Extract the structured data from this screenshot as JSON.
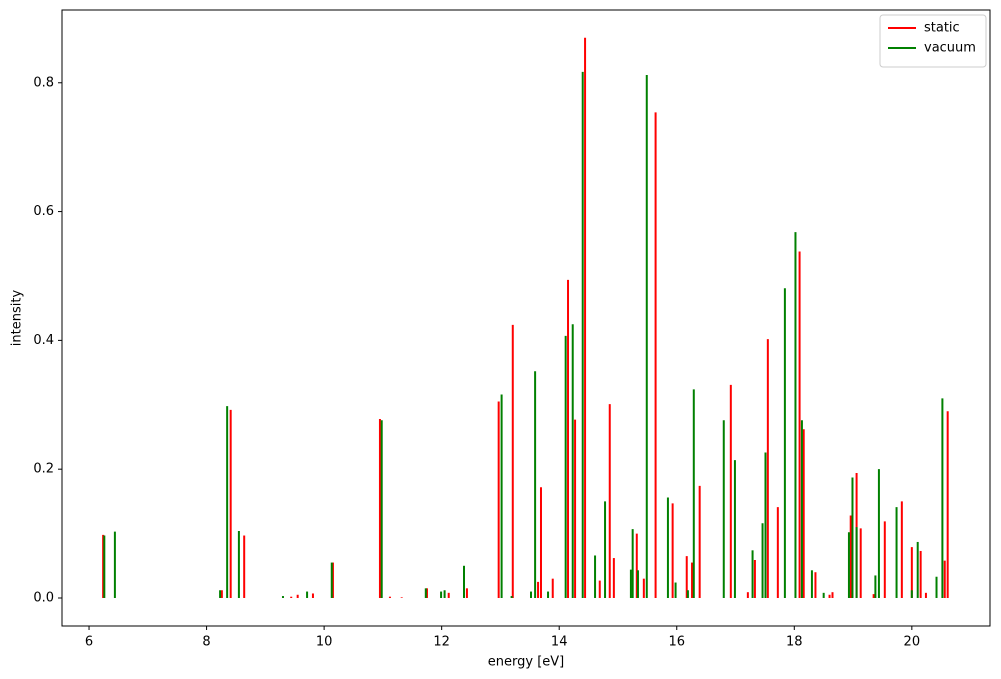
{
  "chart_data": {
    "type": "stick",
    "xlabel": "energy [eV]",
    "ylabel": "intensity",
    "xlim": [
      5.54,
      21.33
    ],
    "ylim": [
      -0.0435,
      0.913
    ],
    "xticks": [
      6,
      8,
      10,
      12,
      14,
      16,
      18,
      20
    ],
    "yticks": [
      {
        "value": 0,
        "label": "0.0"
      },
      {
        "value": 0.2,
        "label": "0.2"
      },
      {
        "value": 0.4,
        "label": "0.4"
      },
      {
        "value": 0.6,
        "label": "0.6"
      },
      {
        "value": 0.8,
        "label": "0.8"
      }
    ],
    "legend": "upper right",
    "grid": false,
    "series": [
      {
        "name": "static",
        "color": "#ff0000",
        "x": [
          6.24,
          8.26,
          8.41,
          8.64,
          9.44,
          9.55,
          9.81,
          10.15,
          10.95,
          11.12,
          11.32,
          11.75,
          12.12,
          12.43,
          12.97,
          13.21,
          13.64,
          13.69,
          13.89,
          14.15,
          14.27,
          14.44,
          14.69,
          14.86,
          14.93,
          15.32,
          15.44,
          15.64,
          15.93,
          16.17,
          16.26,
          16.39,
          16.92,
          17.21,
          17.33,
          17.55,
          17.72,
          18.09,
          18.16,
          18.36,
          18.6,
          18.65,
          18.96,
          19.06,
          19.13,
          19.35,
          19.54,
          19.83,
          20.0,
          20.15,
          20.24,
          20.56,
          20.61
        ],
        "values": [
          0.098,
          0.012,
          0.292,
          0.097,
          0.002,
          0.005,
          0.007,
          0.055,
          0.278,
          0.002,
          0.001,
          0.015,
          0.008,
          0.015,
          0.305,
          0.424,
          0.025,
          0.172,
          0.03,
          0.494,
          0.277,
          0.87,
          0.027,
          0.301,
          0.062,
          0.1,
          0.03,
          0.754,
          0.147,
          0.065,
          0.055,
          0.174,
          0.331,
          0.009,
          0.059,
          0.402,
          0.141,
          0.538,
          0.262,
          0.04,
          0.005,
          0.009,
          0.128,
          0.194,
          0.108,
          0.006,
          0.119,
          0.15,
          0.079,
          0.073,
          0.008,
          0.058,
          0.29
        ]
      },
      {
        "name": "vacuum",
        "color": "#008000",
        "x": [
          6.26,
          6.44,
          8.23,
          8.35,
          8.55,
          9.3,
          9.71,
          10.13,
          10.98,
          11.73,
          11.99,
          12.05,
          12.38,
          13.02,
          13.19,
          13.52,
          13.59,
          13.81,
          14.11,
          14.23,
          14.4,
          14.61,
          14.78,
          15.22,
          15.25,
          15.34,
          15.49,
          15.85,
          15.98,
          16.19,
          16.29,
          16.8,
          16.99,
          17.29,
          17.46,
          17.51,
          17.84,
          18.02,
          18.13,
          18.3,
          18.5,
          18.93,
          18.99,
          19.06,
          19.38,
          19.44,
          19.74,
          20.0,
          20.1,
          20.42,
          20.52
        ],
        "values": [
          0.097,
          0.103,
          0.012,
          0.298,
          0.104,
          0.003,
          0.01,
          0.055,
          0.276,
          0.015,
          0.01,
          0.012,
          0.05,
          0.316,
          0.003,
          0.01,
          0.352,
          0.01,
          0.407,
          0.425,
          0.817,
          0.066,
          0.15,
          0.044,
          0.107,
          0.043,
          0.812,
          0.156,
          0.024,
          0.012,
          0.324,
          0.276,
          0.214,
          0.074,
          0.116,
          0.226,
          0.481,
          0.568,
          0.276,
          0.043,
          0.008,
          0.102,
          0.187,
          0.11,
          0.035,
          0.2,
          0.141,
          0.012,
          0.087,
          0.033,
          0.31
        ]
      }
    ]
  }
}
